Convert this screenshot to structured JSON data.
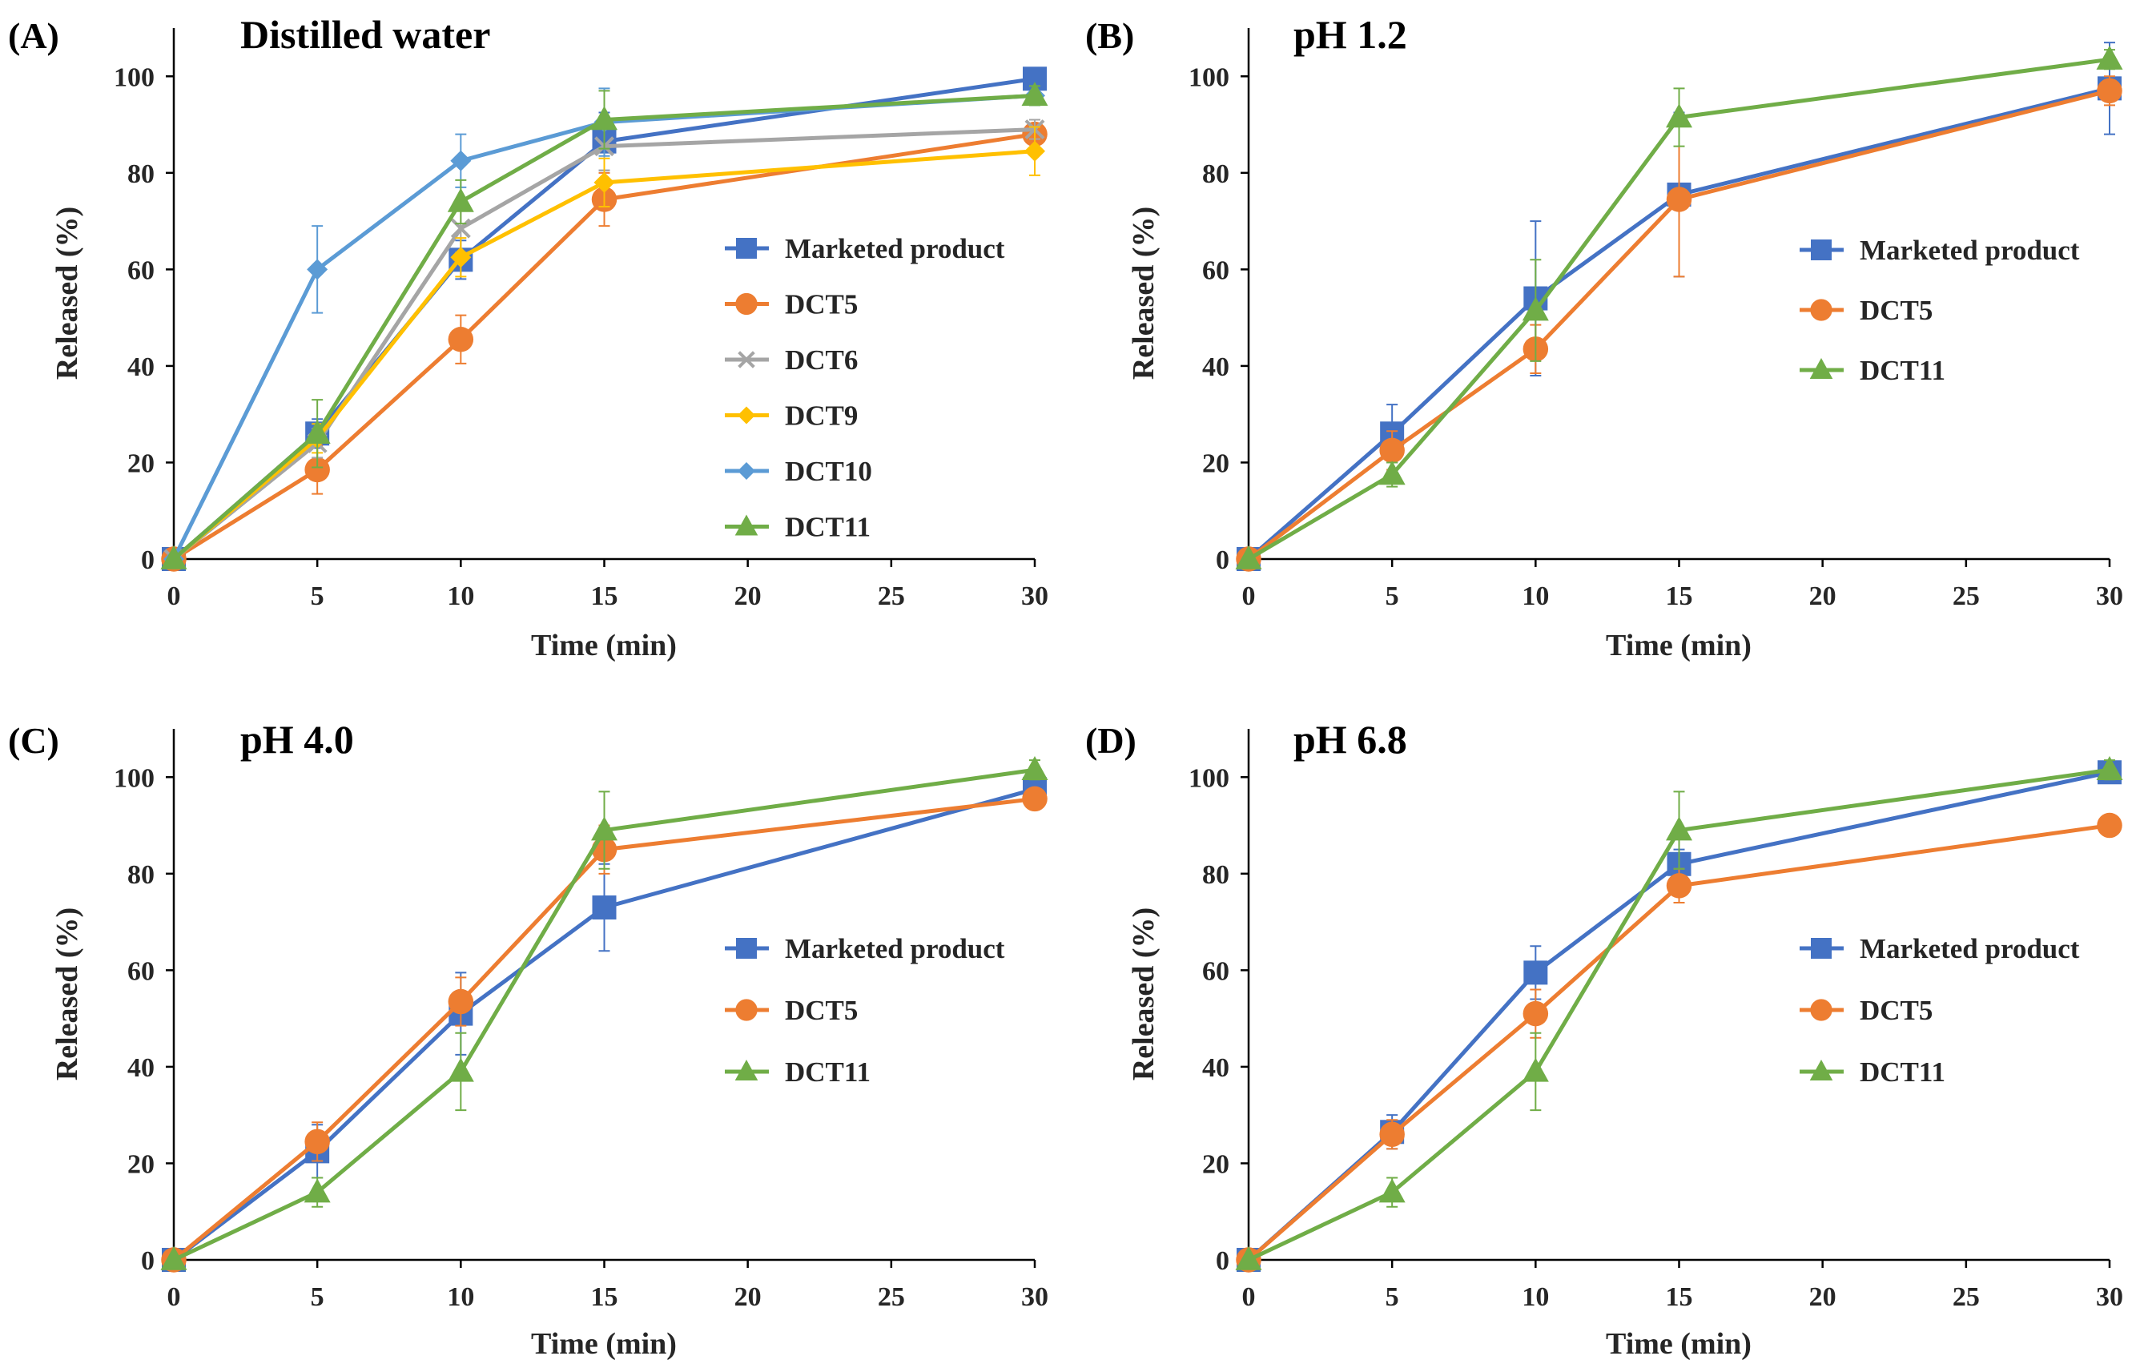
{
  "colors": {
    "marketed": "#4472c4",
    "dct5": "#ed7d31",
    "dct6": "#a5a5a5",
    "dct9": "#ffc000",
    "dct10": "#5b9bd5",
    "dct11": "#70ad47",
    "axis": "#000000"
  },
  "chart_data": [
    {
      "type": "line",
      "panel_label": "(A)",
      "title": "Distilled water",
      "xlabel": "Time (min)",
      "ylabel": "Released (%)",
      "xlim": [
        0,
        30
      ],
      "ylim": [
        0,
        110
      ],
      "x_ticks": [
        0,
        5,
        10,
        15,
        20,
        25,
        30
      ],
      "y_ticks": [
        0,
        20,
        40,
        60,
        80,
        100
      ],
      "x": [
        0,
        5,
        10,
        15,
        30
      ],
      "legend_position": "right-center",
      "series": [
        {
          "name": "Marketed product",
          "color": "marketed",
          "marker": "square",
          "values": [
            0,
            26,
            62,
            86.5,
            99.5
          ],
          "errors": [
            0,
            3,
            4,
            6,
            1.5
          ]
        },
        {
          "name": "DCT5",
          "color": "dct5",
          "marker": "circle",
          "values": [
            0,
            18.5,
            45.5,
            74.5,
            88
          ],
          "errors": [
            0,
            5,
            5,
            5.5,
            2
          ]
        },
        {
          "name": "DCT6",
          "color": "dct6",
          "marker": "x",
          "values": [
            0,
            24,
            68.5,
            85.5,
            89
          ],
          "errors": [
            0,
            3,
            5,
            5,
            2
          ]
        },
        {
          "name": "DCT9",
          "color": "dct9",
          "marker": "diamond",
          "values": [
            0,
            25,
            62.5,
            78,
            84.5
          ],
          "errors": [
            0,
            3,
            4,
            5,
            5
          ]
        },
        {
          "name": "DCT10",
          "color": "dct10",
          "marker": "diamond",
          "values": [
            0,
            60,
            82.5,
            90.5,
            96
          ],
          "errors": [
            0,
            9,
            5.5,
            7,
            2
          ]
        },
        {
          "name": "DCT11",
          "color": "dct11",
          "marker": "triangle",
          "values": [
            0,
            26,
            74,
            91,
            96
          ],
          "errors": [
            0,
            7,
            4.5,
            6,
            2
          ]
        }
      ]
    },
    {
      "type": "line",
      "panel_label": "(B)",
      "title": "pH 1.2",
      "xlabel": "Time (min)",
      "ylabel": "Released (%)",
      "xlim": [
        0,
        30
      ],
      "ylim": [
        0,
        110
      ],
      "x_ticks": [
        0,
        5,
        10,
        15,
        20,
        25,
        30
      ],
      "y_ticks": [
        0,
        20,
        40,
        60,
        80,
        100
      ],
      "x": [
        0,
        5,
        10,
        15,
        30
      ],
      "legend_position": "right-center",
      "series": [
        {
          "name": "Marketed product",
          "color": "marketed",
          "marker": "square",
          "values": [
            0,
            26,
            54,
            75.5,
            97.5
          ],
          "errors": [
            0,
            6,
            16,
            17,
            9.5
          ]
        },
        {
          "name": "DCT5",
          "color": "dct5",
          "marker": "circle",
          "values": [
            0,
            22.5,
            43.5,
            74.5,
            97
          ],
          "errors": [
            0,
            4,
            5,
            16,
            3
          ]
        },
        {
          "name": "DCT11",
          "color": "dct11",
          "marker": "triangle",
          "values": [
            0,
            17.5,
            51.5,
            91.5,
            103.5
          ],
          "errors": [
            0,
            2.5,
            10.5,
            6,
            2
          ]
        }
      ]
    },
    {
      "type": "line",
      "panel_label": "(C)",
      "title": "pH 4.0",
      "xlabel": "Time (min)",
      "ylabel": "Released (%)",
      "xlim": [
        0,
        30
      ],
      "ylim": [
        0,
        110
      ],
      "x_ticks": [
        0,
        5,
        10,
        15,
        20,
        25,
        30
      ],
      "y_ticks": [
        0,
        20,
        40,
        60,
        80,
        100
      ],
      "x": [
        0,
        5,
        10,
        15,
        30
      ],
      "legend_position": "right-center",
      "series": [
        {
          "name": "Marketed product",
          "color": "marketed",
          "marker": "square",
          "values": [
            0,
            22.5,
            51,
            73,
            97.5
          ],
          "errors": [
            0,
            5.5,
            8.5,
            9,
            2
          ]
        },
        {
          "name": "DCT5",
          "color": "dct5",
          "marker": "circle",
          "values": [
            0,
            24.5,
            53.5,
            85,
            95.5
          ],
          "errors": [
            0,
            4,
            5,
            5,
            1.5
          ]
        },
        {
          "name": "DCT11",
          "color": "dct11",
          "marker": "triangle",
          "values": [
            0,
            14,
            39,
            89,
            101.5
          ],
          "errors": [
            0,
            3,
            8,
            8,
            2
          ]
        }
      ]
    },
    {
      "type": "line",
      "panel_label": "(D)",
      "title": "pH 6.8",
      "xlabel": "Time (min)",
      "ylabel": "Released (%)",
      "xlim": [
        0,
        30
      ],
      "ylim": [
        0,
        110
      ],
      "x_ticks": [
        0,
        5,
        10,
        15,
        20,
        25,
        30
      ],
      "y_ticks": [
        0,
        20,
        40,
        60,
        80,
        100
      ],
      "x": [
        0,
        5,
        10,
        15,
        30
      ],
      "legend_position": "right-center",
      "series": [
        {
          "name": "Marketed product",
          "color": "marketed",
          "marker": "square",
          "values": [
            0,
            26.5,
            59.5,
            82,
            101
          ],
          "errors": [
            0,
            3.5,
            5.5,
            3,
            1.5
          ]
        },
        {
          "name": "DCT5",
          "color": "dct5",
          "marker": "circle",
          "values": [
            0,
            26,
            51,
            77.5,
            90
          ],
          "errors": [
            0,
            3,
            5,
            3.5,
            1
          ]
        },
        {
          "name": "DCT11",
          "color": "dct11",
          "marker": "triangle",
          "values": [
            0,
            14,
            39,
            89,
            101.5
          ],
          "errors": [
            0,
            3,
            8,
            8,
            2
          ]
        }
      ]
    }
  ]
}
